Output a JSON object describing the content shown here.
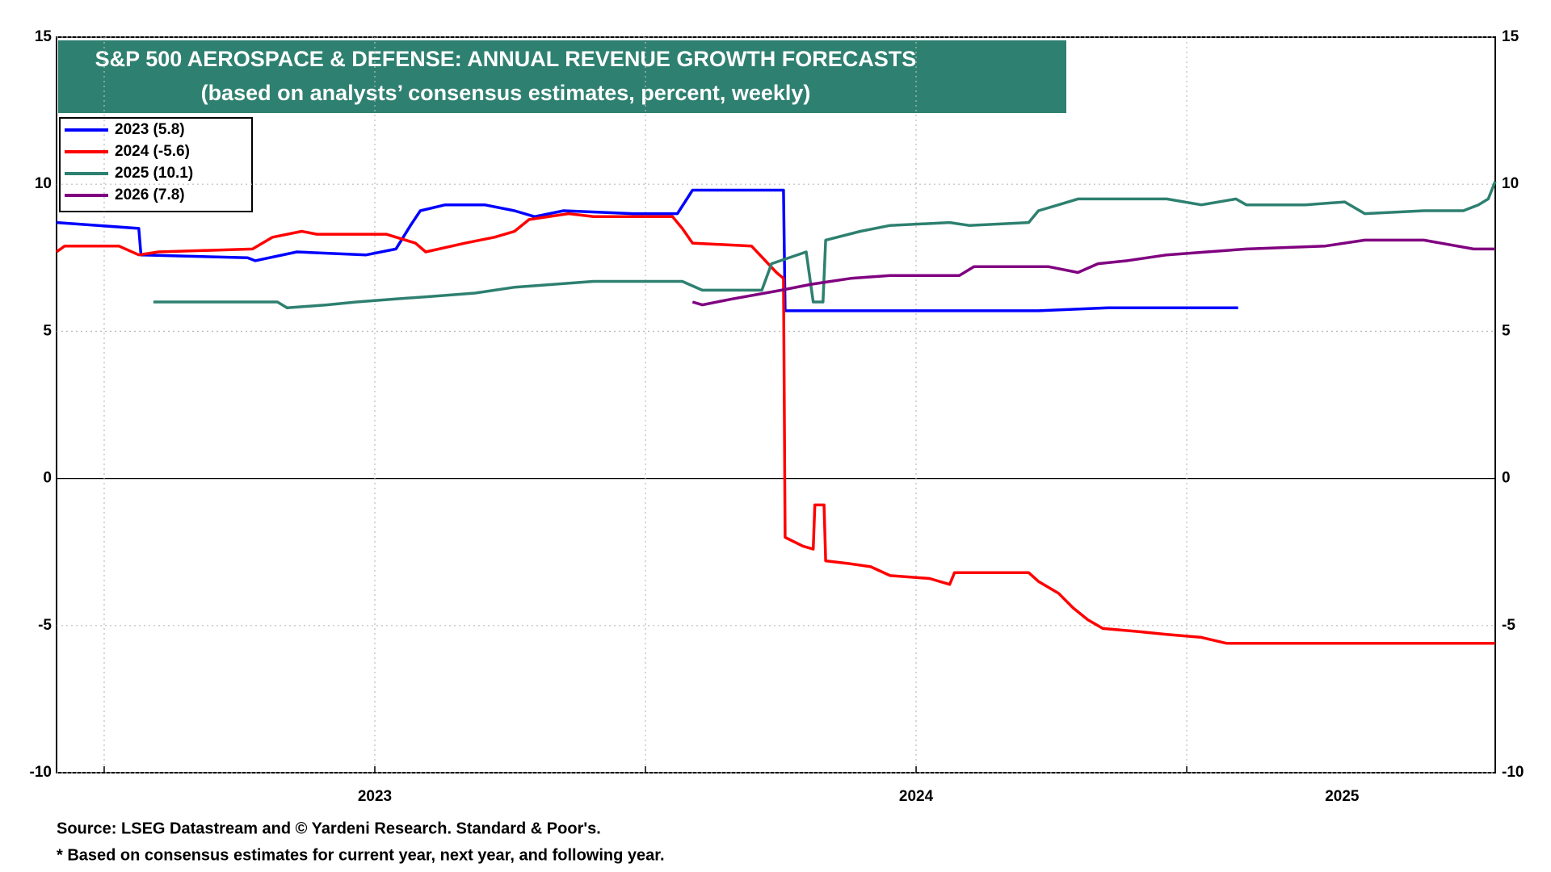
{
  "chart_data": {
    "type": "line",
    "title": "S&P 500 AEROSPACE & DEFENSE: ANNUAL REVENUE GROWTH FORECASTS",
    "subtitle": "(based on analysts’ consensus estimates, percent, weekly)",
    "footnotes": [
      "Source: LSEG Datastream and © Yardeni Research. Standard & Poor's.",
      "* Based on consensus estimates for current year, next year, and following year."
    ],
    "xlim": [
      2022.912,
      2025.57
    ],
    "xticks": [
      {
        "value": 2023.5,
        "label": "2023"
      },
      {
        "value": 2024.5,
        "label": "2024"
      },
      {
        "value": 2025.287,
        "label": "2025"
      }
    ],
    "xgrid_lines": [
      2023,
      2023.5,
      2024,
      2024.5,
      2025
    ],
    "ylim": [
      -10,
      15
    ],
    "yticks": [
      -10,
      -5,
      0,
      5,
      10,
      15
    ],
    "y2lim": [
      -10,
      15
    ],
    "y2ticks": [
      -10,
      -5,
      0,
      5,
      10,
      15
    ],
    "grid": true,
    "legend": "upper left",
    "series": [
      {
        "name": "2023 (5.8)",
        "color": "#0000ff",
        "x": [
          2022.912,
          2023.064,
          2023.068,
          2023.265,
          2023.279,
          2023.356,
          2023.484,
          2023.539,
          2023.566,
          2023.584,
          2023.63,
          2023.703,
          2023.758,
          2023.795,
          2023.849,
          2023.977,
          2024.059,
          2024.087,
          2024.255,
          2024.258,
          2024.726,
          2024.854,
          2025.095
        ],
        "values": [
          8.7,
          8.5,
          7.6,
          7.5,
          7.4,
          7.7,
          7.6,
          7.8,
          8.6,
          9.1,
          9.3,
          9.3,
          9.1,
          8.9,
          9.1,
          9.0,
          9.0,
          9.8,
          9.8,
          5.7,
          5.7,
          5.8,
          5.8
        ]
      },
      {
        "name": "2024 (-5.6)",
        "color": "#ff0000",
        "x": [
          2022.912,
          2022.927,
          2023.027,
          2023.064,
          2023.1,
          2023.274,
          2023.311,
          2023.365,
          2023.393,
          2023.484,
          2023.521,
          2023.575,
          2023.594,
          2023.667,
          2023.721,
          2023.758,
          2023.785,
          2023.858,
          2023.904,
          2024.05,
          2024.068,
          2024.087,
          2024.196,
          2024.242,
          2024.255,
          2024.258,
          2024.291,
          2024.31,
          2024.313,
          2024.33,
          2024.333,
          2024.379,
          2024.416,
          2024.452,
          2024.525,
          2024.562,
          2024.571,
          2024.708,
          2024.726,
          2024.763,
          2024.79,
          2024.817,
          2024.845,
          2024.909,
          2024.963,
          2025.027,
          2025.073,
          2025.57
        ],
        "values": [
          7.7,
          7.9,
          7.9,
          7.6,
          7.7,
          7.8,
          8.2,
          8.4,
          8.3,
          8.3,
          8.3,
          8.0,
          7.7,
          8.0,
          8.2,
          8.4,
          8.8,
          9.0,
          8.9,
          8.9,
          8.5,
          8.0,
          7.9,
          7.0,
          6.8,
          -2.0,
          -2.3,
          -2.4,
          -0.9,
          -0.9,
          -2.8,
          -2.9,
          -3.0,
          -3.3,
          -3.4,
          -3.6,
          -3.2,
          -3.2,
          -3.5,
          -3.9,
          -4.4,
          -4.8,
          -5.1,
          -5.2,
          -5.3,
          -5.4,
          -5.6,
          -5.6
        ]
      },
      {
        "name": "2025 (10.1)",
        "color": "#2e8070",
        "x": [
          2023.091,
          2023.32,
          2023.338,
          2023.411,
          2023.466,
          2023.539,
          2023.612,
          2023.685,
          2023.758,
          2023.831,
          2023.904,
          2024.068,
          2024.105,
          2024.215,
          2024.233,
          2024.297,
          2024.31,
          2024.328,
          2024.333,
          2024.397,
          2024.452,
          2024.562,
          2024.598,
          2024.708,
          2024.726,
          2024.763,
          2024.799,
          2024.854,
          2024.963,
          2025.027,
          2025.091,
          2025.11,
          2025.219,
          2025.292,
          2025.329,
          2025.438,
          2025.511,
          2025.539,
          2025.557,
          2025.57
        ],
        "values": [
          6.0,
          6.0,
          5.8,
          5.9,
          6.0,
          6.1,
          6.2,
          6.3,
          6.5,
          6.6,
          6.7,
          6.7,
          6.4,
          6.4,
          7.3,
          7.7,
          6.0,
          6.0,
          8.1,
          8.4,
          8.6,
          8.7,
          8.6,
          8.7,
          9.1,
          9.3,
          9.5,
          9.5,
          9.5,
          9.3,
          9.5,
          9.3,
          9.3,
          9.4,
          9.0,
          9.1,
          9.1,
          9.3,
          9.5,
          10.1
        ]
      },
      {
        "name": "2026 (7.8)",
        "color": "#800080",
        "x": [
          2024.087,
          2024.105,
          2024.16,
          2024.251,
          2024.306,
          2024.379,
          2024.452,
          2024.58,
          2024.607,
          2024.744,
          2024.799,
          2024.836,
          2024.89,
          2024.963,
          2025.037,
          2025.11,
          2025.256,
          2025.329,
          2025.438,
          2025.53,
          2025.57
        ],
        "values": [
          6.0,
          5.9,
          6.1,
          6.4,
          6.6,
          6.8,
          6.9,
          6.9,
          7.2,
          7.2,
          7.0,
          7.3,
          7.4,
          7.6,
          7.7,
          7.8,
          7.9,
          8.1,
          8.1,
          7.8,
          7.8
        ]
      }
    ]
  }
}
